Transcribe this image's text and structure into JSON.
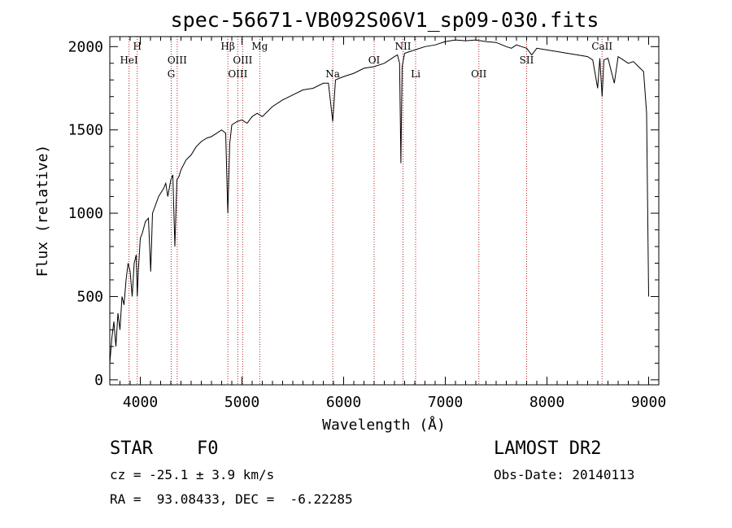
{
  "chart_data": {
    "type": "line",
    "title": "spec-56671-VB092S06V1_sp09-030.fits",
    "xlabel": "Wavelength (Å)",
    "ylabel": "Flux (relative)",
    "xlim": [
      3700,
      9100
    ],
    "ylim": [
      -30,
      2060
    ],
    "xticks": [
      4000,
      5000,
      6000,
      7000,
      8000,
      9000
    ],
    "yticks": [
      0,
      500,
      1000,
      1500,
      2000
    ],
    "grid": false,
    "spectrum": {
      "x": [
        3700,
        3720,
        3740,
        3760,
        3780,
        3800,
        3820,
        3840,
        3860,
        3880,
        3900,
        3920,
        3940,
        3960,
        3970,
        3980,
        4000,
        4020,
        4050,
        4080,
        4102,
        4120,
        4150,
        4180,
        4200,
        4230,
        4250,
        4270,
        4300,
        4320,
        4340,
        4360,
        4380,
        4400,
        4450,
        4500,
        4550,
        4600,
        4650,
        4700,
        4750,
        4800,
        4840,
        4861,
        4880,
        4900,
        4950,
        5000,
        5050,
        5100,
        5150,
        5200,
        5300,
        5400,
        5500,
        5600,
        5700,
        5800,
        5850,
        5893,
        5920,
        6000,
        6100,
        6200,
        6300,
        6400,
        6450,
        6500,
        6530,
        6550,
        6563,
        6575,
        6600,
        6650,
        6700,
        6800,
        6900,
        7000,
        7100,
        7200,
        7300,
        7400,
        7500,
        7600,
        7650,
        7700,
        7750,
        7800,
        7850,
        7900,
        8000,
        8100,
        8200,
        8300,
        8400,
        8450,
        8498,
        8520,
        8542,
        8560,
        8600,
        8662,
        8700,
        8750,
        8800,
        8850,
        8900,
        8950,
        8980,
        9000
      ],
      "y": [
        100,
        250,
        350,
        200,
        400,
        300,
        500,
        450,
        600,
        700,
        650,
        500,
        700,
        750,
        500,
        650,
        850,
        880,
        950,
        970,
        650,
        1000,
        1050,
        1100,
        1120,
        1150,
        1180,
        1100,
        1200,
        1230,
        800,
        1200,
        1220,
        1260,
        1320,
        1350,
        1400,
        1430,
        1450,
        1460,
        1480,
        1500,
        1480,
        1000,
        1420,
        1530,
        1550,
        1560,
        1540,
        1580,
        1600,
        1580,
        1640,
        1680,
        1710,
        1740,
        1750,
        1780,
        1780,
        1550,
        1800,
        1820,
        1840,
        1870,
        1880,
        1900,
        1920,
        1940,
        1950,
        1900,
        1300,
        1880,
        1960,
        1970,
        1980,
        2000,
        2010,
        2030,
        2040,
        2035,
        2040,
        2030,
        2025,
        2000,
        1990,
        2010,
        2000,
        1990,
        1950,
        1990,
        1980,
        1970,
        1960,
        1950,
        1940,
        1920,
        1750,
        1930,
        1700,
        1920,
        1930,
        1780,
        1940,
        1920,
        1900,
        1910,
        1880,
        1850,
        1600,
        500
      ]
    },
    "lines": [
      {
        "name": "HeI",
        "x": 3889,
        "row": 2
      },
      {
        "name": "H",
        "x": 3970,
        "row": 1
      },
      {
        "name": "OIII",
        "x": 4363,
        "row": 2
      },
      {
        "name": "G",
        "x": 4304,
        "row": 3
      },
      {
        "name": "Hβ",
        "x": 4861,
        "row": 1
      },
      {
        "name": "OIII",
        "x": 5007,
        "row": 2
      },
      {
        "name": "OIII",
        "x": 4959,
        "row": 3
      },
      {
        "name": "Mg",
        "x": 5175,
        "row": 1
      },
      {
        "name": "Na",
        "x": 5893,
        "row": 3
      },
      {
        "name": "OI",
        "x": 6300,
        "row": 2
      },
      {
        "name": "NII",
        "x": 6584,
        "row": 1
      },
      {
        "name": "Li",
        "x": 6708,
        "row": 3
      },
      {
        "name": "OII",
        "x": 7330,
        "row": 3
      },
      {
        "name": "SII",
        "x": 7800,
        "row": 2
      },
      {
        "name": "CaII",
        "x": 8542,
        "row": 1
      }
    ]
  },
  "info": {
    "object_type": "STAR",
    "subclass": "F0",
    "survey": "LAMOST DR2",
    "redshift": "cz = -25.1 ± 3.9 km/s",
    "obs_date": "Obs-Date: 20140113",
    "coords": "RA =  93.08433, DEC =  -6.22285"
  }
}
